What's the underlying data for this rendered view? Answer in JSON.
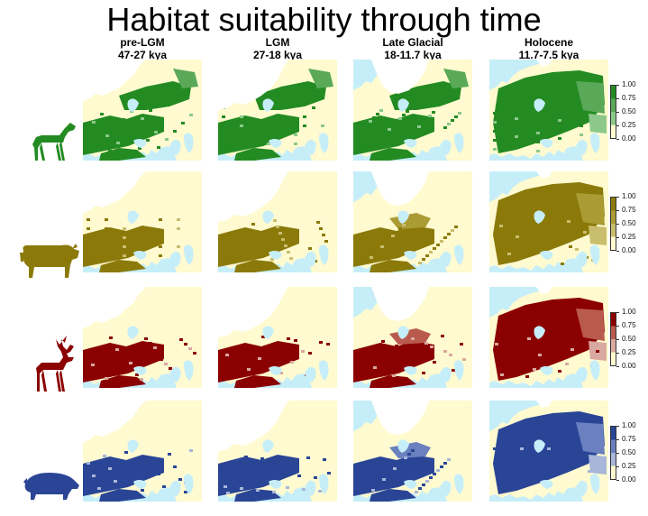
{
  "title": "Habitat suitability through time",
  "columns": [
    {
      "name": "pre-LGM",
      "period": "47-27 kya"
    },
    {
      "name": "LGM",
      "period": "27-18 kya"
    },
    {
      "name": "Late Glacial",
      "period": "18-11.7 kya"
    },
    {
      "name": "Holocene",
      "period": "11.7-7.5 kya"
    }
  ],
  "rows": [
    {
      "species_icon": "horse-icon",
      "color": "#238b22",
      "light": "#8cc88a",
      "mid": "#5aa958"
    },
    {
      "species_icon": "bison-icon",
      "color": "#8b7a0a",
      "light": "#c9bd6e",
      "mid": "#ab9b35"
    },
    {
      "species_icon": "deer-icon",
      "color": "#8b0000",
      "light": "#d9a8a0",
      "mid": "#b95a4e"
    },
    {
      "species_icon": "boar-icon",
      "color": "#2a4596",
      "light": "#a7b6d9",
      "mid": "#6a80bf"
    }
  ],
  "map_colors": {
    "sea": "#c6eef9",
    "land": "#fffad0",
    "ice": "#ffffff"
  },
  "legend": {
    "ticks": [
      "1.00",
      "0.75",
      "0.50",
      "0.25",
      "0.00"
    ]
  }
}
